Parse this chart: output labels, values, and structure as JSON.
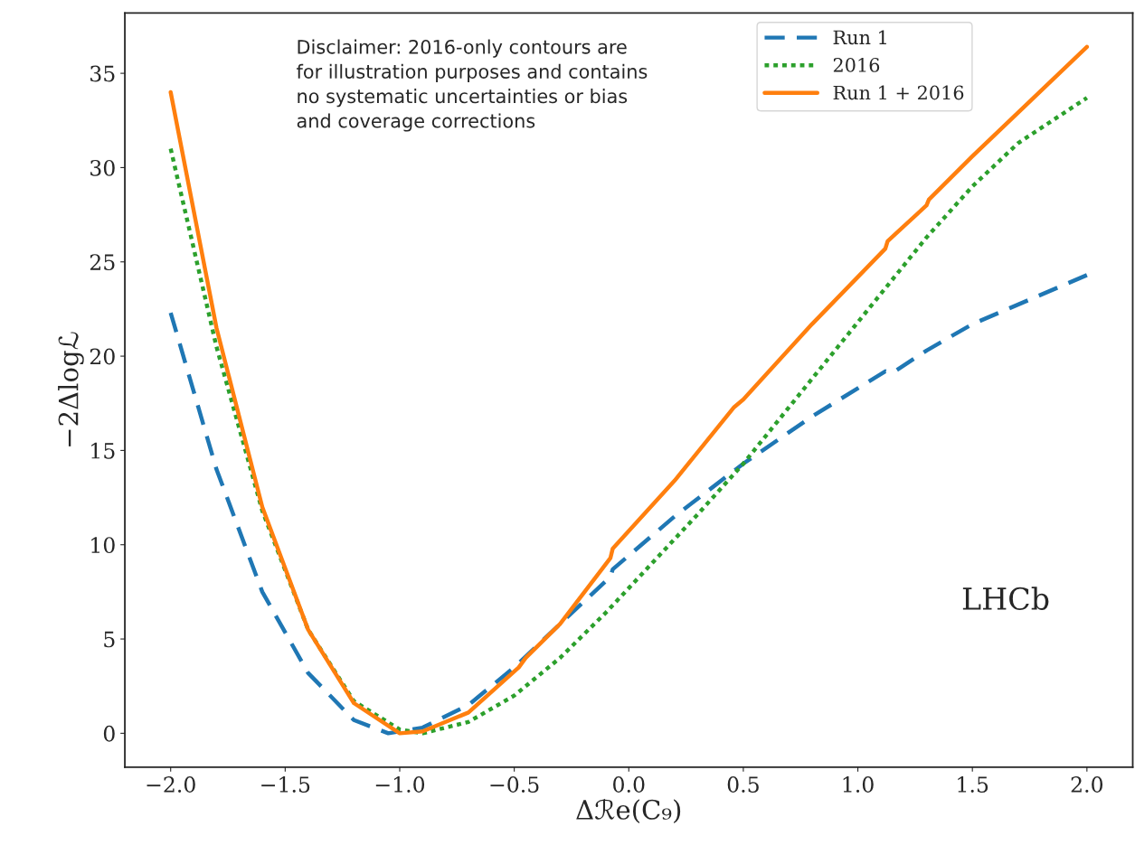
{
  "chart_data": {
    "type": "line",
    "xlabel": "Δℛe(C₉)",
    "ylabel": "−2Δlogℒ",
    "xlim": [
      -2.2,
      2.2
    ],
    "ylim": [
      -1.8,
      38.2
    ],
    "xticks": [
      {
        "value": -2.0,
        "label": "−2.0"
      },
      {
        "value": -1.5,
        "label": "−1.5"
      },
      {
        "value": -1.0,
        "label": "−1.0"
      },
      {
        "value": -0.5,
        "label": "−0.5"
      },
      {
        "value": 0.0,
        "label": "0.0"
      },
      {
        "value": 0.5,
        "label": "0.5"
      },
      {
        "value": 1.0,
        "label": "1.0"
      },
      {
        "value": 1.5,
        "label": "1.5"
      },
      {
        "value": 2.0,
        "label": "2.0"
      }
    ],
    "yticks": [
      0,
      5,
      10,
      15,
      20,
      25,
      30,
      35
    ],
    "legend": "top right",
    "grid": false,
    "series": [
      {
        "name": "Run 1",
        "color": "#1f77b4",
        "line_style": "dashed",
        "x": [
          -2.0,
          -1.8,
          -1.6,
          -1.4,
          -1.2,
          -1.05,
          -0.9,
          -0.7,
          -0.5,
          -0.3,
          -0.08,
          -0.07,
          0.2,
          0.5,
          0.8,
          1.12,
          1.15,
          1.3,
          1.5,
          1.75,
          2.0
        ],
        "values": [
          22.3,
          14.0,
          7.5,
          3.2,
          0.7,
          0.0,
          0.3,
          1.5,
          3.5,
          5.8,
          8.3,
          8.7,
          11.5,
          14.3,
          16.8,
          19.2,
          19.1,
          20.3,
          21.7,
          23.0,
          24.3
        ]
      },
      {
        "name": "2016",
        "color": "#2ca02c",
        "line_style": "dotted",
        "x": [
          -2.0,
          -1.8,
          -1.6,
          -1.4,
          -1.2,
          -1.0,
          -0.9,
          -0.7,
          -0.5,
          -0.3,
          -0.1,
          0.1,
          0.3,
          0.5,
          0.7,
          0.9,
          1.1,
          1.3,
          1.5,
          1.7,
          2.0
        ],
        "values": [
          31.0,
          20.5,
          11.8,
          5.5,
          1.7,
          0.2,
          0.0,
          0.6,
          2.0,
          4.0,
          6.4,
          9.0,
          11.6,
          14.3,
          17.3,
          20.3,
          23.3,
          26.3,
          29.0,
          31.3,
          33.7
        ]
      },
      {
        "name": "Run 1 + 2016",
        "color": "#ff7f0e",
        "line_style": "solid",
        "x": [
          -2.0,
          -1.8,
          -1.6,
          -1.4,
          -1.2,
          -1.0,
          -0.9,
          -0.7,
          -0.48,
          -0.45,
          -0.3,
          -0.08,
          -0.07,
          0.2,
          0.46,
          0.5,
          0.8,
          1.12,
          1.13,
          1.3,
          1.31,
          1.5,
          2.0
        ],
        "values": [
          34.0,
          21.5,
          12.0,
          5.5,
          1.6,
          0.0,
          0.1,
          1.1,
          3.5,
          4.0,
          5.8,
          9.3,
          9.8,
          13.4,
          17.3,
          17.7,
          21.7,
          25.7,
          26.1,
          28.0,
          28.3,
          30.6,
          36.4
        ]
      }
    ],
    "annotations": [
      "Disclaimer: 2016-only contours are\nfor illustration purposes and contains\nno systematic uncertainties or bias\nand coverage corrections",
      "LHCb"
    ]
  }
}
